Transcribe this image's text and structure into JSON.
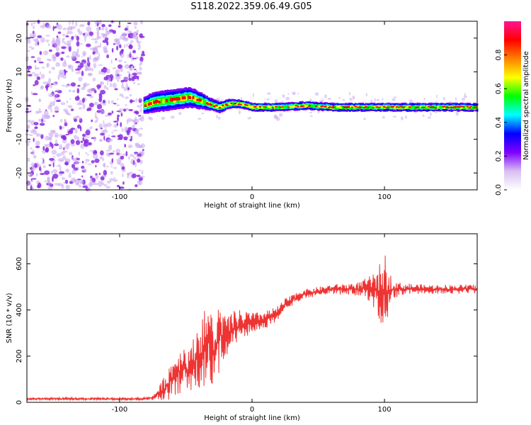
{
  "title": "S118.2022.359.06.49.G05",
  "chart_data": [
    {
      "type": "heatmap",
      "panel": "top",
      "xlabel": "Height of straight line (km)",
      "ylabel": "Frequency (Hz)",
      "xlim": [
        -170,
        170
      ],
      "ylim": [
        -25,
        25
      ],
      "xticks": [
        -100,
        0,
        100
      ],
      "yticks": [
        -20,
        -10,
        0,
        10,
        20
      ],
      "noise_region_x": [
        -170,
        -82
      ],
      "signal_track": {
        "x": [
          -82,
          -75,
          -65,
          -55,
          -48,
          -40,
          -33,
          -25,
          -18,
          -10,
          0,
          20,
          40,
          60,
          80,
          100,
          120,
          140,
          160,
          170
        ],
        "y_hz": [
          0,
          1,
          1.5,
          2,
          2.5,
          1.5,
          0.5,
          -0.5,
          0.5,
          0.5,
          -0.5,
          -0.5,
          0,
          -0.5,
          -0.5,
          -0.5,
          -0.5,
          -0.5,
          -0.5,
          -0.5
        ],
        "width": [
          2.5,
          3,
          3,
          3,
          3,
          2.5,
          1.8,
          1.6,
          1.4,
          1.2,
          1.2,
          1.2,
          1.2,
          1.2,
          1.2,
          1.2,
          1.2,
          1.2,
          1.2,
          1.2
        ]
      },
      "colorbar": {
        "label": "Normalized spectral amplitude",
        "range": [
          0,
          1
        ],
        "ticks": [
          0.0,
          0.2,
          0.4,
          0.6,
          0.8
        ],
        "tick_labels": [
          "0.0",
          "0.2",
          "0.4",
          "0.6",
          "0.8"
        ],
        "colormap": [
          "#ffffff",
          "#d9bff2",
          "#7f00ff",
          "#0000ff",
          "#00ffff",
          "#00ff00",
          "#ffff00",
          "#ff8000",
          "#ff0000",
          "#ff1493"
        ]
      },
      "colors": {
        "noise": "#8a2be2",
        "noise_light": "#c9a6f0"
      }
    },
    {
      "type": "line",
      "panel": "bottom",
      "xlabel": "Height of straight line (km)",
      "ylabel": "SNR (10 * v/v)",
      "xlim": [
        -170,
        170
      ],
      "ylim": [
        0,
        730
      ],
      "xticks": [
        -100,
        0,
        100
      ],
      "yticks": [
        0,
        200,
        400,
        600
      ],
      "color": "#ee3333",
      "series": [
        {
          "x": [
            -170,
            -120,
            -82,
            -75,
            -70,
            -66,
            -62,
            -58,
            -54,
            -50,
            -46,
            -44,
            -40,
            -36,
            -33,
            -31,
            -28,
            -26,
            -24,
            -20,
            -16,
            -12,
            -8,
            -4,
            0,
            5,
            10,
            15,
            20,
            25,
            30,
            35,
            40,
            50,
            60,
            70,
            80,
            85,
            90,
            95,
            98,
            100,
            102,
            105,
            110,
            120,
            130,
            140,
            150,
            160,
            170
          ],
          "y": [
            15,
            15,
            15,
            20,
            40,
            60,
            90,
            120,
            140,
            150,
            130,
            180,
            200,
            230,
            260,
            240,
            200,
            260,
            290,
            270,
            300,
            320,
            330,
            340,
            340,
            350,
            360,
            370,
            390,
            420,
            440,
            460,
            470,
            480,
            490,
            490,
            490,
            495,
            490,
            480,
            470,
            500,
            480,
            490,
            490,
            490,
            490,
            490,
            490,
            490,
            490
          ],
          "amp": [
            5,
            5,
            5,
            10,
            30,
            60,
            80,
            90,
            100,
            110,
            100,
            130,
            150,
            170,
            180,
            160,
            120,
            150,
            150,
            100,
            90,
            80,
            70,
            60,
            50,
            40,
            40,
            35,
            30,
            30,
            25,
            25,
            20,
            20,
            20,
            25,
            30,
            40,
            60,
            100,
            150,
            160,
            120,
            60,
            30,
            25,
            20,
            20,
            20,
            20,
            20
          ]
        }
      ]
    }
  ]
}
